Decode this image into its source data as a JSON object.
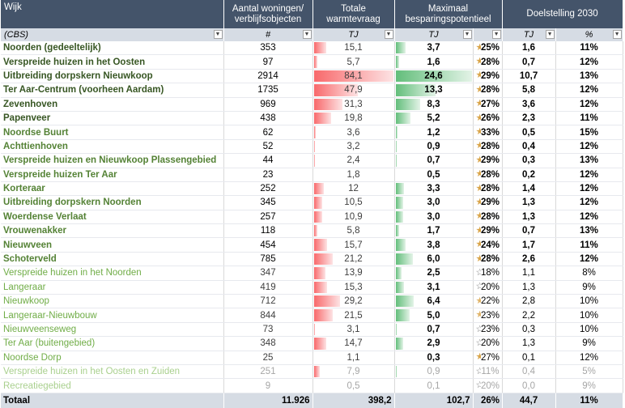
{
  "header": {
    "wijk": "Wijk",
    "woningen": "Aantal woningen/ verblijfsobjecten",
    "warmte": "Totale warmtevraag",
    "besparing": "Maximaal besparingspotentieel",
    "doel": "Doelstelling 2030"
  },
  "subheader": {
    "wijk": "(CBS)",
    "woningen": "#",
    "warmte": "TJ",
    "besparing": "TJ",
    "doel_tj": "TJ",
    "doel_pct": "%"
  },
  "rows": [
    {
      "name": "Noorden (gedeeltelijk)",
      "woningen": "353",
      "warmte": "15,1",
      "besparing": "3,7",
      "pct": "25%",
      "doel_tj": "1,6",
      "doel_pct": "11%",
      "level": 0,
      "star": "full"
    },
    {
      "name": "Verspreide huizen in het Oosten",
      "woningen": "97",
      "warmte": "5,7",
      "besparing": "1,6",
      "pct": "28%",
      "doel_tj": "0,7",
      "doel_pct": "12%",
      "level": 0,
      "star": "full"
    },
    {
      "name": "Uitbreiding dorpskern Nieuwkoop",
      "woningen": "2914",
      "warmte": "84,1",
      "besparing": "24,6",
      "pct": "29%",
      "doel_tj": "10,7",
      "doel_pct": "13%",
      "level": 0,
      "star": "full"
    },
    {
      "name": "Ter Aar-Centrum (voorheen Aardam)",
      "woningen": "1735",
      "warmte": "47,9",
      "besparing": "13,3",
      "pct": "28%",
      "doel_tj": "5,8",
      "doel_pct": "12%",
      "level": 0,
      "star": "full"
    },
    {
      "name": "Zevenhoven",
      "woningen": "969",
      "warmte": "31,3",
      "besparing": "8,3",
      "pct": "27%",
      "doel_tj": "3,6",
      "doel_pct": "12%",
      "level": 0,
      "star": "full"
    },
    {
      "name": "Papenveer",
      "woningen": "438",
      "warmte": "19,8",
      "besparing": "5,2",
      "pct": "26%",
      "doel_tj": "2,3",
      "doel_pct": "11%",
      "level": 0,
      "star": "full"
    },
    {
      "name": "Noordse Buurt",
      "woningen": "62",
      "warmte": "3,6",
      "besparing": "1,2",
      "pct": "33%",
      "doel_tj": "0,5",
      "doel_pct": "15%",
      "level": 1,
      "star": "full"
    },
    {
      "name": "Achttienhoven",
      "woningen": "52",
      "warmte": "3,2",
      "besparing": "0,9",
      "pct": "28%",
      "doel_tj": "0,4",
      "doel_pct": "12%",
      "level": 1,
      "star": "full"
    },
    {
      "name": "Verspreide huizen en Nieuwkoop Plassengebied",
      "woningen": "44",
      "warmte": "2,4",
      "besparing": "0,7",
      "pct": "29%",
      "doel_tj": "0,3",
      "doel_pct": "13%",
      "level": 1,
      "star": "full"
    },
    {
      "name": "Verspreide huizen Ter Aar",
      "woningen": "23",
      "warmte": "1,8",
      "besparing": "0,5",
      "pct": "28%",
      "doel_tj": "0,2",
      "doel_pct": "12%",
      "level": 1,
      "star": "full"
    },
    {
      "name": "Korteraar",
      "woningen": "252",
      "warmte": "12",
      "besparing": "3,3",
      "pct": "28%",
      "doel_tj": "1,4",
      "doel_pct": "12%",
      "level": 1,
      "star": "full"
    },
    {
      "name": "Uitbreiding dorpskern Noorden",
      "woningen": "345",
      "warmte": "10,5",
      "besparing": "3,0",
      "pct": "29%",
      "doel_tj": "1,3",
      "doel_pct": "12%",
      "level": 1,
      "star": "full"
    },
    {
      "name": "Woerdense Verlaat",
      "woningen": "257",
      "warmte": "10,9",
      "besparing": "3,0",
      "pct": "28%",
      "doel_tj": "1,3",
      "doel_pct": "12%",
      "level": 1,
      "star": "full"
    },
    {
      "name": "Vrouwenakker",
      "woningen": "118",
      "warmte": "5,8",
      "besparing": "1,7",
      "pct": "29%",
      "doel_tj": "0,7",
      "doel_pct": "13%",
      "level": 1,
      "star": "full"
    },
    {
      "name": "Nieuwveen",
      "woningen": "454",
      "warmte": "15,7",
      "besparing": "3,8",
      "pct": "24%",
      "doel_tj": "1,7",
      "doel_pct": "11%",
      "level": 1,
      "star": "full"
    },
    {
      "name": "Schoterveld",
      "woningen": "785",
      "warmte": "21,2",
      "besparing": "6,0",
      "pct": "28%",
      "doel_tj": "2,6",
      "doel_pct": "12%",
      "level": 1,
      "star": "full"
    },
    {
      "name": "Verspreide huizen in het Noorden",
      "woningen": "347",
      "warmte": "13,9",
      "besparing": "2,5",
      "pct": "18%",
      "doel_tj": "1,1",
      "doel_pct": "8%",
      "level": 2,
      "star": "empty"
    },
    {
      "name": "Langeraar",
      "woningen": "419",
      "warmte": "15,3",
      "besparing": "3,1",
      "pct": "20%",
      "doel_tj": "1,3",
      "doel_pct": "9%",
      "level": 2,
      "star": "empty"
    },
    {
      "name": "Nieuwkoop",
      "woningen": "712",
      "warmte": "29,2",
      "besparing": "6,4",
      "pct": "22%",
      "doel_tj": "2,8",
      "doel_pct": "10%",
      "level": 2,
      "star": "half"
    },
    {
      "name": "Langeraar-Nieuwbouw",
      "woningen": "844",
      "warmte": "21,5",
      "besparing": "5,0",
      "pct": "23%",
      "doel_tj": "2,2",
      "doel_pct": "10%",
      "level": 2,
      "star": "half"
    },
    {
      "name": "Nieuwveenseweg",
      "woningen": "73",
      "warmte": "3,1",
      "besparing": "0,7",
      "pct": "23%",
      "doel_tj": "0,3",
      "doel_pct": "10%",
      "level": 2,
      "star": "empty"
    },
    {
      "name": "Ter Aar (buitengebied)",
      "woningen": "348",
      "warmte": "14,7",
      "besparing": "2,9",
      "pct": "20%",
      "doel_tj": "1,3",
      "doel_pct": "9%",
      "level": 2,
      "star": "empty"
    },
    {
      "name": "Noordse Dorp",
      "woningen": "25",
      "warmte": "1,1",
      "besparing": "0,3",
      "pct": "27%",
      "doel_tj": "0,1",
      "doel_pct": "12%",
      "level": 2,
      "star": "full"
    },
    {
      "name": "Verspreide huizen in het Oosten en Zuiden",
      "woningen": "251",
      "warmte": "7,9",
      "besparing": "0,9",
      "pct": "11%",
      "doel_tj": "0,4",
      "doel_pct": "5%",
      "level": 3,
      "star": "empty"
    },
    {
      "name": "Recreatiegebied",
      "woningen": "9",
      "warmte": "0,5",
      "besparing": "0,1",
      "pct": "20%",
      "doel_tj": "0,0",
      "doel_pct": "9%",
      "level": 3,
      "star": "empty"
    }
  ],
  "totaal": {
    "name": "Totaal",
    "woningen": "11.926",
    "warmte": "398,2",
    "besparing": "102,7",
    "pct": "26%",
    "doel_tj": "44,7",
    "doel_pct": "11%"
  },
  "scales": {
    "warmte_max": 84.1,
    "besparing_max": 24.6
  },
  "colors": {
    "header_bg": "#44546a",
    "subheader_bg": "#d6dce4",
    "databar_red": "#f8696b",
    "databar_green": "#63be7b",
    "star_gold": "#d9a54a"
  },
  "icons": {
    "filter": "dropdown-arrow-icon",
    "rating": "star-icon"
  }
}
